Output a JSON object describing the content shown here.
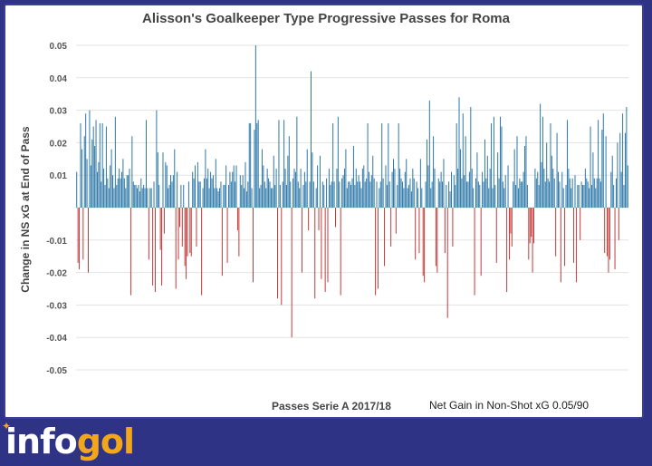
{
  "chart_data": {
    "type": "bar",
    "title": "Alisson's Goalkeeper Type Progressive Passes for Roma",
    "xlabel": "Passes Serie A 2017/18",
    "ylabel": "Change in NS xG at End of Pass",
    "annotation": "Net Gain in Non-Shot xG 0.05/90",
    "ylim": [
      -0.05,
      0.05
    ],
    "yticks": [
      "0.05",
      "0.04",
      "0.03",
      "0.02",
      "0.01",
      "",
      "-0.01",
      "-0.02",
      "-0.03",
      "-0.04",
      "-0.05"
    ],
    "ytick_values": [
      0.05,
      0.04,
      0.03,
      0.02,
      0.01,
      0.0,
      -0.01,
      -0.02,
      -0.03,
      -0.04,
      -0.05
    ],
    "grid": true,
    "legend": "none",
    "positive_color": "#2e78a8",
    "negative_color": "#c23a3a",
    "values": [
      0.011,
      -0.017,
      -0.019,
      0.026,
      0.018,
      -0.016,
      0.022,
      0.029,
      0.015,
      -0.02,
      0.03,
      0.013,
      0.021,
      0.025,
      0.019,
      0.027,
      0.011,
      0.014,
      0.026,
      0.008,
      0.026,
      0.012,
      0.007,
      0.025,
      0.009,
      0.006,
      0.013,
      0.018,
      0.01,
      0.006,
      0.028,
      0.007,
      0.009,
      0.012,
      0.009,
      0.011,
      0.015,
      0.009,
      0.006,
      0.01,
      0.01,
      0.012,
      -0.027,
      0.022,
      0.008,
      0.007,
      0.007,
      0.006,
      0.007,
      0.005,
      0.009,
      0.006,
      0.007,
      0.006,
      0.027,
      0.006,
      -0.016,
      0.006,
      0.006,
      -0.024,
      0.008,
      -0.026,
      0.03,
      0.017,
      0.007,
      -0.013,
      -0.024,
      0.017,
      -0.008,
      0.014,
      0.013,
      0.006,
      0.007,
      0.01,
      0.008,
      0.01,
      0.018,
      -0.025,
      0.011,
      -0.016,
      -0.006,
      0.007,
      -0.012,
      0.007,
      -0.018,
      -0.022,
      -0.015,
      0.008,
      -0.014,
      -0.015,
      0.011,
      0.009,
      0.013,
      -0.012,
      0.014,
      0.008,
      0.008,
      -0.027,
      0.006,
      0.009,
      0.018,
      0.009,
      0.012,
      0.006,
      0.011,
      0.009,
      0.01,
      0.006,
      0.015,
      0.006,
      0.005,
      0.006,
      0.008,
      -0.021,
      0.007,
      0.007,
      0.013,
      -0.017,
      0.007,
      0.011,
      0.008,
      0.011,
      0.013,
      0.008,
      0.013,
      -0.007,
      -0.015,
      0.01,
      0.007,
      0.01,
      0.006,
      0.014,
      0.005,
      0.008,
      0.026,
      0.026,
      0.006,
      -0.023,
      0.024,
      0.05,
      0.026,
      0.027,
      0.006,
      0.007,
      0.018,
      0.013,
      0.008,
      0.006,
      0.012,
      0.009,
      0.008,
      0.006,
      0.006,
      0.016,
      0.007,
      0.012,
      -0.028,
      0.027,
      0.007,
      -0.03,
      0.008,
      0.027,
      0.012,
      0.007,
      0.016,
      0.022,
      0.008,
      -0.04,
      0.009,
      0.012,
      0.011,
      0.028,
      0.008,
      0.006,
      0.012,
      -0.02,
      0.007,
      0.011,
      0.008,
      0.018,
      -0.007,
      0.008,
      0.042,
      0.017,
      0.008,
      -0.028,
      0.006,
      0.013,
      -0.007,
      0.016,
      -0.022,
      0.008,
      0.007,
      -0.026,
      0.009,
      -0.023,
      0.012,
      0.007,
      0.008,
      0.026,
      0.008,
      -0.006,
      0.012,
      0.028,
      0.008,
      -0.027,
      0.009,
      0.01,
      0.012,
      0.018,
      0.006,
      0.008,
      0.008,
      0.007,
      0.009,
      0.019,
      0.007,
      0.012,
      0.008,
      0.01,
      0.008,
      0.006,
      0.012,
      0.013,
      0.008,
      0.009,
      0.026,
      0.011,
      0.008,
      0.01,
      0.016,
      0.009,
      -0.027,
      0.008,
      -0.025,
      0.006,
      0.008,
      0.026,
      0.009,
      -0.018,
      0.013,
      0.007,
      0.026,
      0.008,
      -0.012,
      0.011,
      0.015,
      0.012,
      -0.008,
      0.007,
      0.026,
      0.012,
      0.009,
      0.008,
      0.006,
      0.011,
      0.015,
      0.006,
      0.007,
      0.009,
      0.005,
      0.012,
      0.009,
      -0.016,
      0.008,
      0.006,
      -0.014,
      0.015,
      0.006,
      -0.021,
      -0.023,
      0.008,
      0.021,
      0.013,
      0.033,
      0.006,
      0.008,
      0.022,
      0.012,
      -0.018,
      -0.02,
      0.009,
      0.008,
      0.011,
      0.008,
      0.015,
      -0.014,
      0.007,
      -0.034,
      0.008,
      0.005,
      0.011,
      -0.012,
      0.01,
      0.007,
      0.026,
      0.012,
      0.034,
      0.018,
      0.009,
      0.029,
      0.01,
      0.022,
      0.008,
      0.008,
      0.011,
      0.031,
      0.012,
      0.006,
      -0.027,
      0.009,
      0.017,
      0.008,
      0.007,
      -0.021,
      0.011,
      0.008,
      0.021,
      0.009,
      0.016,
      0.006,
      0.012,
      0.026,
      0.006,
      0.028,
      0.007,
      -0.017,
      0.017,
      0.009,
      0.028,
      0.025,
      0.008,
      0.006,
      0.01,
      -0.026,
      0.013,
      -0.016,
      -0.008,
      -0.012,
      0.008,
      0.018,
      0.007,
      0.022,
      0.006,
      0.009,
      0.008,
      0.008,
      0.011,
      0.019,
      0.022,
      0.007,
      -0.016,
      -0.011,
      -0.009,
      -0.02,
      -0.011,
      0.012,
      0.009,
      0.011,
      0.007,
      0.032,
      0.014,
      0.028,
      0.012,
      0.008,
      0.02,
      0.009,
      0.008,
      0.026,
      0.016,
      0.012,
      0.009,
      -0.015,
      0.023,
      0.011,
      0.008,
      -0.023,
      0.011,
      0.006,
      -0.018,
      0.007,
      0.027,
      0.012,
      0.009,
      0.006,
      0.009,
      -0.017,
      0.01,
      -0.023,
      0.007,
      0.007,
      -0.01,
      0.008,
      0.007,
      0.007,
      0.012,
      0.009,
      0.008,
      0.006,
      0.025,
      0.007,
      0.017,
      0.009,
      0.006,
      0.009,
      0.027,
      0.009,
      0.008,
      0.024,
      0.029,
      -0.014,
      0.022,
      -0.015,
      -0.02,
      -0.016,
      0.011,
      0.016,
      0.007,
      -0.019,
      0.009,
      0.02,
      -0.01,
      0.023,
      0.011,
      0.029,
      0.007,
      0.023,
      0.031,
      0.013
    ]
  },
  "brand": {
    "name_part1": "info",
    "name_part2": "gol",
    "star": "✦"
  }
}
